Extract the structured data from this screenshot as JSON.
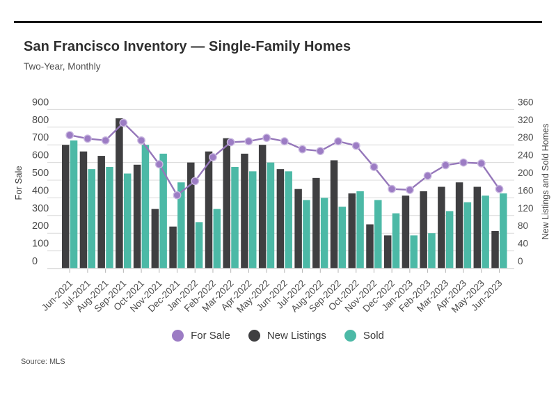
{
  "header": {
    "title": "San Francisco Inventory — Single-Family Homes",
    "subtitle": "Two-Year, Monthly"
  },
  "source": "Source: MLS",
  "legend": [
    {
      "label": "For Sale",
      "color": "#9c7cc4"
    },
    {
      "label": "New Listings",
      "color": "#3f3f41"
    },
    {
      "label": "Sold",
      "color": "#4cb9a6"
    }
  ],
  "colors": {
    "for_sale_line": "#9577ba",
    "for_sale_dot": "#9c7cc4",
    "for_sale_dot_ring": "#c9b8e0",
    "new_listings_bar": "#3f3f41",
    "sold_bar": "#4cb9a6",
    "gridline": "#d9d9d9",
    "tick_text": "#4c4c4c"
  },
  "chart_data": {
    "type": "bar",
    "subtype": "grouped-bars-with-line-dual-axis",
    "title": "San Francisco Inventory — Single-Family Homes",
    "subtitle": "Two-Year, Monthly",
    "grid": true,
    "legend_position": "bottom",
    "categories": [
      "Jun-2021",
      "Jul-2021",
      "Aug-2021",
      "Sep-2021",
      "Oct-2021",
      "Nov-2021",
      "Dec-2021",
      "Jan-2022",
      "Feb-2022",
      "Mar-2022",
      "Apr-2022",
      "May-2022",
      "Jun-2022",
      "Jul-2022",
      "Aug-2022",
      "Sep-2022",
      "Oct-2022",
      "Nov-2022",
      "Dec-2022",
      "Jan-2023",
      "Feb-2023",
      "Mar-2023",
      "Apr-2023",
      "May-2023",
      "Jun-2023"
    ],
    "series": [
      {
        "name": "For Sale",
        "type": "line",
        "axis": "left",
        "values": [
          755,
          735,
          725,
          825,
          725,
          590,
          415,
          495,
          630,
          715,
          720,
          740,
          720,
          675,
          665,
          720,
          695,
          575,
          450,
          445,
          525,
          585,
          600,
          595,
          450
        ]
      },
      {
        "name": "New Listings",
        "type": "bar",
        "axis": "right",
        "values": [
          280,
          265,
          255,
          340,
          235,
          135,
          95,
          240,
          265,
          295,
          260,
          280,
          225,
          180,
          205,
          245,
          170,
          100,
          75,
          165,
          175,
          185,
          195,
          185,
          85
        ]
      },
      {
        "name": "Sold",
        "type": "bar",
        "axis": "right",
        "values": [
          290,
          225,
          230,
          215,
          280,
          260,
          195,
          105,
          135,
          230,
          220,
          240,
          220,
          155,
          160,
          140,
          175,
          155,
          125,
          75,
          80,
          130,
          150,
          165,
          170
        ]
      }
    ],
    "left_axis": {
      "label": "For Sale",
      "min": 0,
      "max": 900,
      "tick_step": 100
    },
    "right_axis": {
      "label": "New Listings and Sold Homes",
      "min": 0,
      "max": 360,
      "tick_step": 40
    }
  }
}
